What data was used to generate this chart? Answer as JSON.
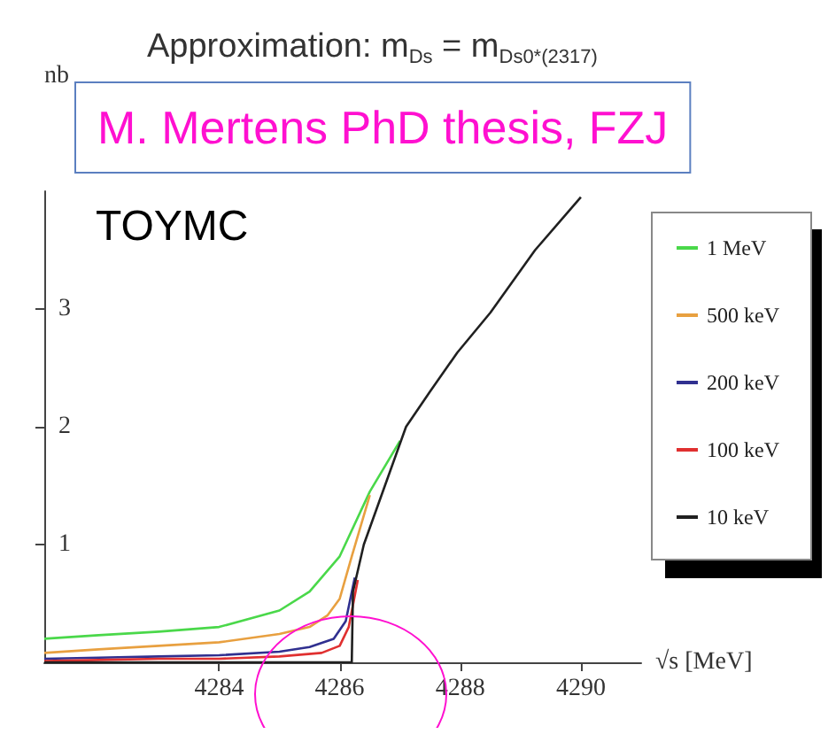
{
  "chart_data": {
    "type": "line",
    "title": "Approximation: m$_{Ds}$ = m$_{Ds0*(2317)}$",
    "xlabel": "√s [MeV]",
    "ylabel": "nb",
    "annotations": [
      "M. Mertens PhD thesis, FZJ",
      "TOYMC"
    ],
    "xlim": [
      4281.1,
      4291
    ],
    "ylim": [
      0,
      4
    ],
    "xticks": [
      4284,
      4286,
      4288,
      4290
    ],
    "yticks": [
      1,
      2,
      3
    ],
    "grid": false,
    "legend": "right",
    "series": [
      {
        "name": "1 MeV",
        "color": "#4ad84a",
        "x": [
          4281.1,
          4282,
          4283,
          4284,
          4285,
          4285.5,
          4286,
          4286.5,
          4287
        ],
        "values": [
          0.2,
          0.23,
          0.26,
          0.3,
          0.44,
          0.6,
          0.9,
          1.45,
          1.88
        ]
      },
      {
        "name": "500 keV",
        "color": "#e8a040",
        "x": [
          4281.1,
          4282,
          4283,
          4284,
          4285,
          4285.5,
          4285.8,
          4286,
          4286.2,
          4286.5
        ],
        "values": [
          0.08,
          0.11,
          0.14,
          0.17,
          0.24,
          0.3,
          0.4,
          0.54,
          0.9,
          1.42
        ]
      },
      {
        "name": "200 keV",
        "color": "#303090",
        "x": [
          4281.1,
          4282,
          4283,
          4284,
          4285,
          4285.5,
          4285.9,
          4286.1,
          4286.25
        ],
        "values": [
          0.03,
          0.04,
          0.05,
          0.06,
          0.09,
          0.13,
          0.2,
          0.35,
          0.72
        ]
      },
      {
        "name": "100 keV",
        "color": "#e03030",
        "x": [
          4281.1,
          4282,
          4283,
          4284,
          4285,
          4285.7,
          4286,
          4286.15,
          4286.3
        ],
        "values": [
          0.01,
          0.02,
          0.03,
          0.03,
          0.05,
          0.08,
          0.14,
          0.3,
          0.7
        ]
      },
      {
        "name": "10 keV",
        "color": "#202020",
        "x": [
          4281.1,
          4286.2,
          4286.22,
          4286.4,
          4286.75,
          4287.1,
          4287.5,
          4287.95,
          4288.5,
          4289.24,
          4290
        ],
        "values": [
          0,
          0,
          0.6,
          1.0,
          1.5,
          2.0,
          2.3,
          2.63,
          2.97,
          3.5,
          3.95
        ]
      }
    ]
  }
}
